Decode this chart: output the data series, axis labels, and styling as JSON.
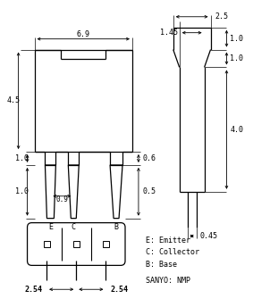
{
  "bg_color": "#ffffff",
  "line_color": "#000000",
  "font_size": 6.0,
  "labels": {
    "E": "E",
    "C": "C",
    "B": "B",
    "E_full": "E: Emitter",
    "C_full": "C: Collector",
    "B_full": "B: Base",
    "sanyo": "SANYO: NMP",
    "dim_69": "6.9",
    "dim_45": "4.5",
    "dim_10a": "1.0",
    "dim_10b": "1.0",
    "dim_06": "0.6",
    "dim_05": "0.5",
    "dim_09": "0.9",
    "dim_25": "2.5",
    "dim_10c": "1.0",
    "dim_10d": "1.0",
    "dim_40": "4.0",
    "dim_045": "0.45",
    "dim_145": "1.45",
    "dim_254a": "2.54",
    "dim_254b": "2.54"
  }
}
